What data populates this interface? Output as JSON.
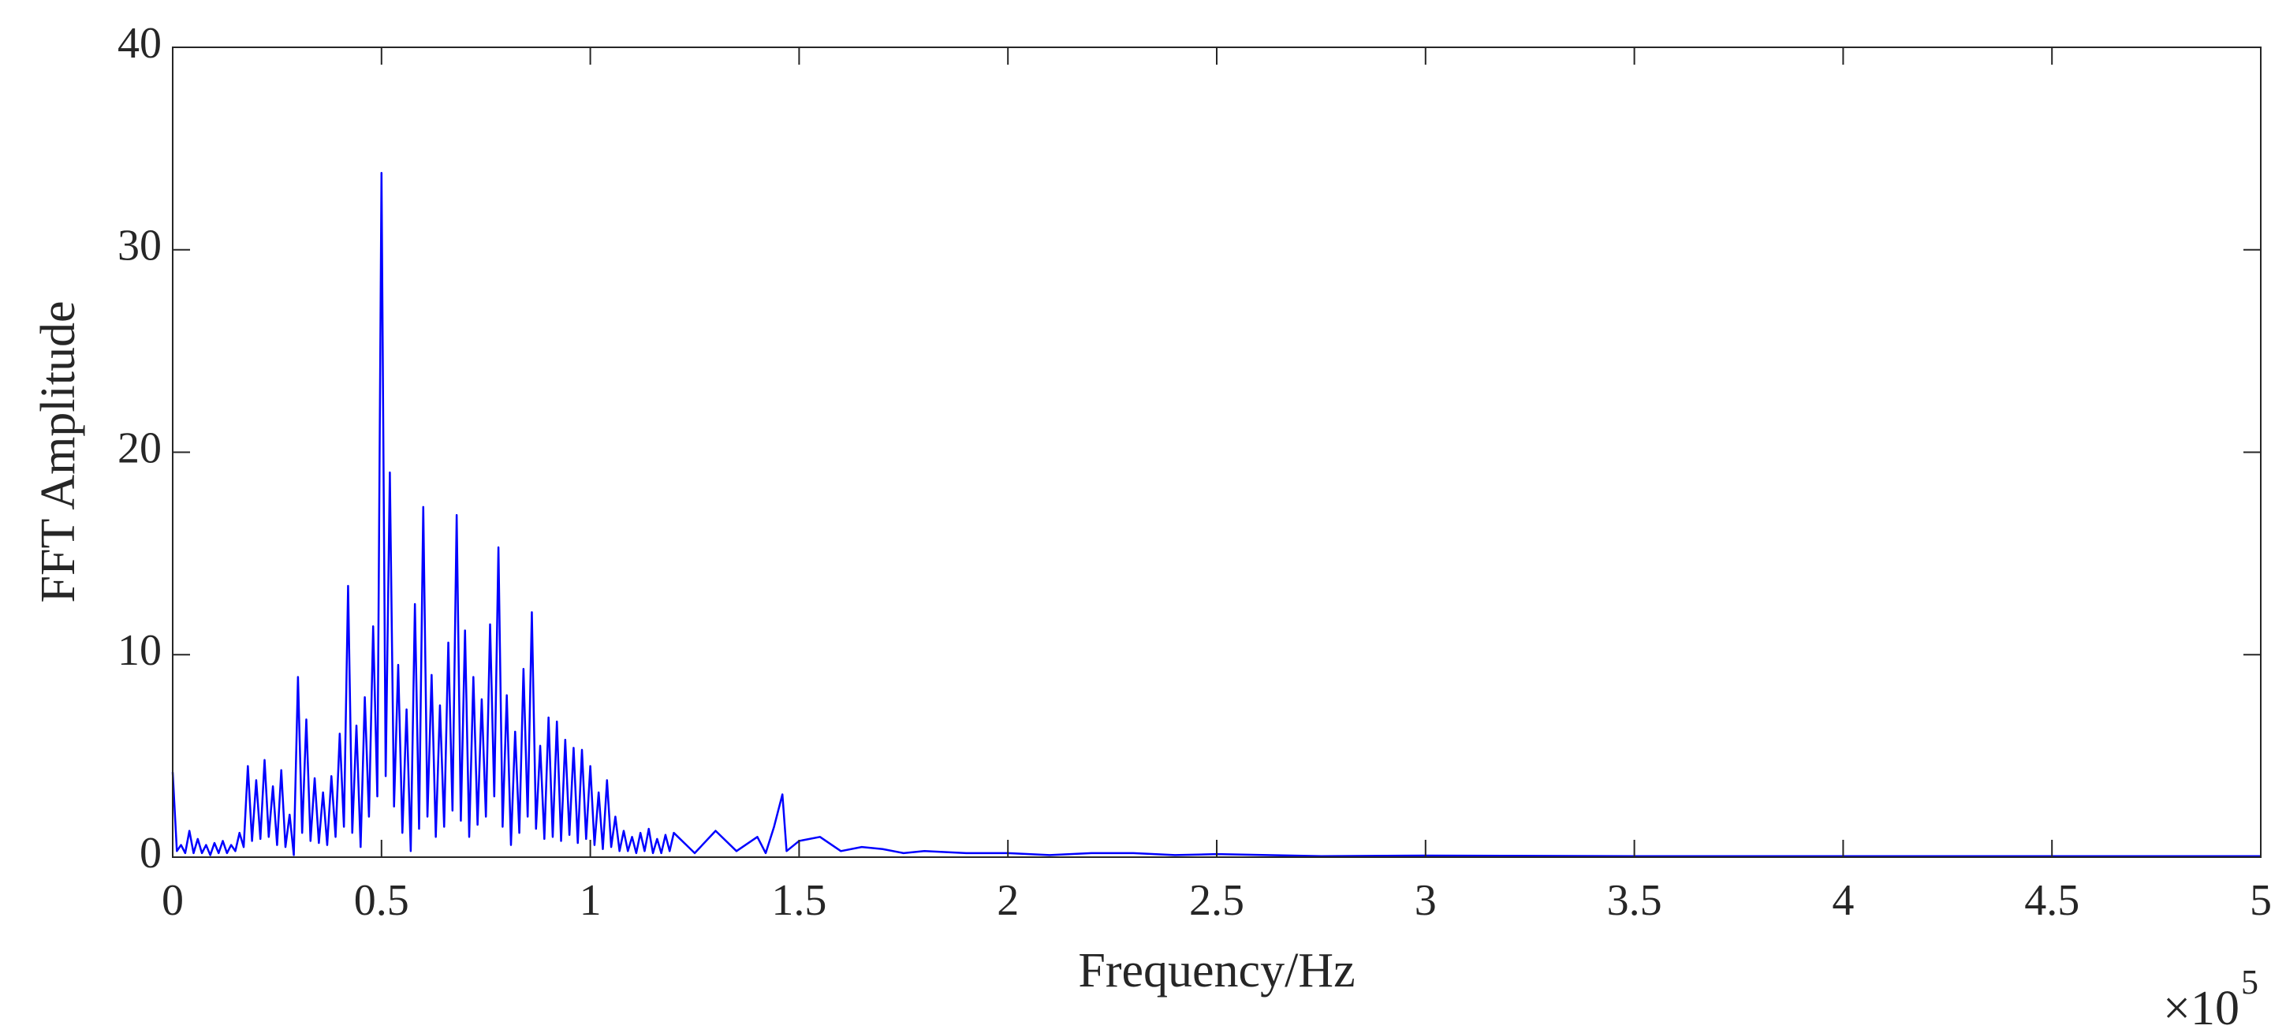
{
  "chart_data": {
    "type": "line",
    "x_label": "Frequency/Hz",
    "y_label": "FFT Amplitude",
    "x_scale_label": "×10",
    "x_scale_exponent": "5",
    "xlim": [
      0,
      5
    ],
    "xticks": [
      0,
      0.5,
      1,
      1.5,
      2,
      2.5,
      3,
      3.5,
      4,
      4.5,
      5
    ],
    "ylim": [
      0,
      40
    ],
    "yticks": [
      0,
      10,
      20,
      30,
      40
    ],
    "grid": false,
    "series": [
      {
        "color": "#0000ff",
        "x": [
          0.0,
          0.01,
          0.02,
          0.03,
          0.04,
          0.05,
          0.06,
          0.07,
          0.08,
          0.09,
          0.1,
          0.11,
          0.12,
          0.13,
          0.14,
          0.15,
          0.16,
          0.17,
          0.18,
          0.19,
          0.2,
          0.21,
          0.22,
          0.23,
          0.24,
          0.25,
          0.26,
          0.27,
          0.28,
          0.29,
          0.3,
          0.31,
          0.32,
          0.33,
          0.34,
          0.35,
          0.36,
          0.37,
          0.38,
          0.39,
          0.4,
          0.41,
          0.42,
          0.43,
          0.44,
          0.45,
          0.46,
          0.47,
          0.48,
          0.49,
          0.5,
          0.51,
          0.52,
          0.53,
          0.54,
          0.55,
          0.56,
          0.57,
          0.58,
          0.59,
          0.6,
          0.61,
          0.62,
          0.63,
          0.64,
          0.65,
          0.66,
          0.67,
          0.68,
          0.69,
          0.7,
          0.71,
          0.72,
          0.73,
          0.74,
          0.75,
          0.76,
          0.77,
          0.78,
          0.79,
          0.8,
          0.81,
          0.82,
          0.83,
          0.84,
          0.85,
          0.86,
          0.87,
          0.88,
          0.89,
          0.9,
          0.91,
          0.92,
          0.93,
          0.94,
          0.95,
          0.96,
          0.97,
          0.98,
          0.99,
          1.0,
          1.01,
          1.02,
          1.03,
          1.04,
          1.05,
          1.06,
          1.07,
          1.08,
          1.09,
          1.1,
          1.11,
          1.12,
          1.13,
          1.14,
          1.15,
          1.16,
          1.17,
          1.18,
          1.19,
          1.2,
          1.25,
          1.3,
          1.35,
          1.4,
          1.42,
          1.44,
          1.46,
          1.47,
          1.5,
          1.55,
          1.6,
          1.65,
          1.7,
          1.75,
          1.8,
          1.9,
          2.0,
          2.1,
          2.2,
          2.3,
          2.4,
          2.5,
          2.75,
          3.0,
          3.5,
          4.0,
          4.5,
          5.0
        ],
        "values": [
          4.2,
          0.3,
          0.6,
          0.2,
          1.3,
          0.2,
          0.9,
          0.2,
          0.6,
          0.1,
          0.7,
          0.2,
          0.8,
          0.2,
          0.6,
          0.3,
          1.2,
          0.5,
          4.5,
          0.8,
          3.8,
          0.9,
          4.8,
          1.0,
          3.5,
          0.6,
          4.3,
          0.5,
          2.1,
          0.1,
          8.9,
          1.2,
          6.8,
          0.8,
          3.9,
          0.7,
          3.2,
          0.6,
          4.0,
          1.0,
          6.1,
          1.5,
          13.4,
          1.2,
          6.5,
          0.5,
          7.9,
          2.0,
          11.4,
          3.0,
          33.8,
          4.0,
          19.0,
          2.5,
          9.5,
          1.2,
          7.3,
          0.3,
          12.5,
          1.4,
          17.3,
          2.0,
          9.0,
          1.0,
          7.5,
          1.5,
          10.6,
          2.3,
          16.9,
          1.8,
          11.2,
          1.0,
          8.9,
          1.6,
          7.8,
          2.0,
          11.5,
          3.0,
          15.3,
          1.5,
          8.0,
          0.6,
          6.2,
          1.2,
          9.3,
          2.0,
          12.1,
          1.4,
          5.5,
          0.9,
          6.9,
          1.0,
          6.7,
          0.8,
          5.8,
          1.1,
          5.4,
          0.7,
          5.3,
          0.9,
          4.5,
          0.6,
          3.2,
          0.4,
          3.8,
          0.5,
          2.0,
          0.3,
          1.3,
          0.3,
          1.0,
          0.2,
          1.2,
          0.3,
          1.4,
          0.2,
          0.9,
          0.2,
          1.1,
          0.3,
          1.2,
          0.2,
          1.3,
          0.3,
          1.0,
          0.2,
          1.5,
          3.1,
          0.3,
          0.8,
          1.0,
          0.3,
          0.5,
          0.4,
          0.2,
          0.3,
          0.2,
          0.2,
          0.1,
          0.2,
          0.2,
          0.1,
          0.15,
          0.05,
          0.08,
          0.05,
          0.05,
          0.05,
          0.05
        ]
      }
    ]
  }
}
